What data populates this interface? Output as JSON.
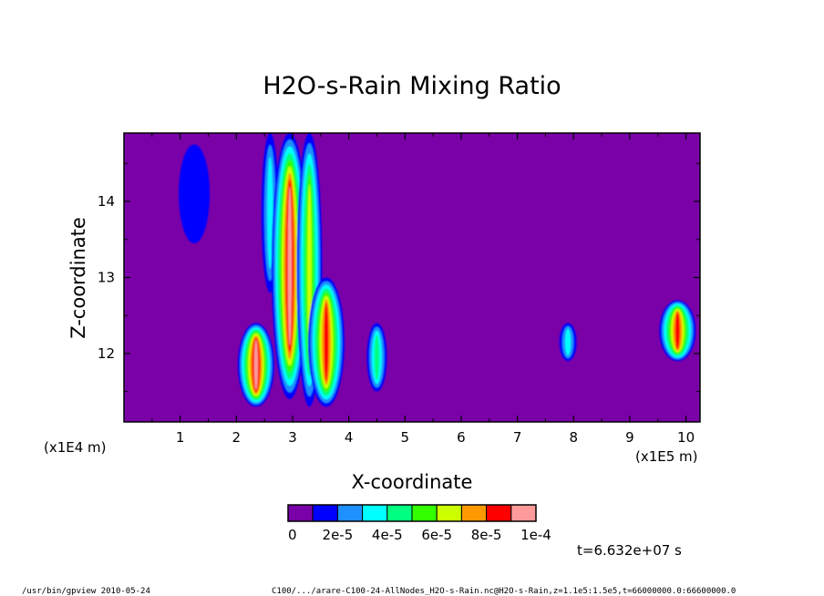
{
  "chart_data": {
    "type": "heatmap",
    "title": "H2O-s-Rain Mixing Ratio",
    "xlabel": "X-coordinate",
    "ylabel": "Z-coordinate",
    "x_scale_label": "(x1E4 m)",
    "x_scale_label_right": "(x1E5 m)",
    "xlim": [
      0,
      10.25
    ],
    "ylim": [
      11.1,
      14.9
    ],
    "x_ticks": [
      "1",
      "2",
      "3",
      "4",
      "5",
      "6",
      "7",
      "8",
      "9",
      "10"
    ],
    "y_ticks": [
      "12",
      "13",
      "14"
    ],
    "background_color": "#7a00a8",
    "colorbar": {
      "colors": [
        "#7a00a8",
        "#0000ff",
        "#1e90ff",
        "#00ffff",
        "#00ff80",
        "#33ff00",
        "#ccff00",
        "#ff9900",
        "#ff0000",
        "#ff9a9a"
      ],
      "labels": [
        "0",
        "2e-5",
        "4e-5",
        "6e-5",
        "8e-5",
        "1e-4"
      ],
      "range": [
        0,
        0.0001
      ]
    },
    "features": [
      {
        "x": 1.25,
        "z_range": [
          13.45,
          14.75
        ],
        "level": 1,
        "note": "diffuse blue region"
      },
      {
        "x": 2.6,
        "z_range": [
          12.8,
          14.9
        ],
        "level": 3
      },
      {
        "x": 2.95,
        "z_range": [
          11.4,
          14.9
        ],
        "level": 9
      },
      {
        "x": 3.3,
        "z_range": [
          11.3,
          14.9
        ],
        "level": 6
      },
      {
        "x": 3.6,
        "z_range": [
          11.3,
          13.0
        ],
        "level": 8
      },
      {
        "x": 2.35,
        "z_range": [
          11.3,
          12.4
        ],
        "level": 9
      },
      {
        "x": 4.5,
        "z_range": [
          11.5,
          12.4
        ],
        "level": 4
      },
      {
        "x": 7.9,
        "z_range": [
          11.9,
          12.4
        ],
        "level": 3
      },
      {
        "x": 9.85,
        "z_range": [
          11.9,
          12.7
        ],
        "level": 8
      }
    ]
  },
  "time_label": "t=6.632e+07 s",
  "footer": {
    "left": "/usr/bin/gpview  2010-05-24",
    "right": "C100/.../arare-C100-24-AllNodes_H2O-s-Rain.nc@H2O-s-Rain,z=1.1e5:1.5e5,t=66000000.0:66600000.0"
  }
}
